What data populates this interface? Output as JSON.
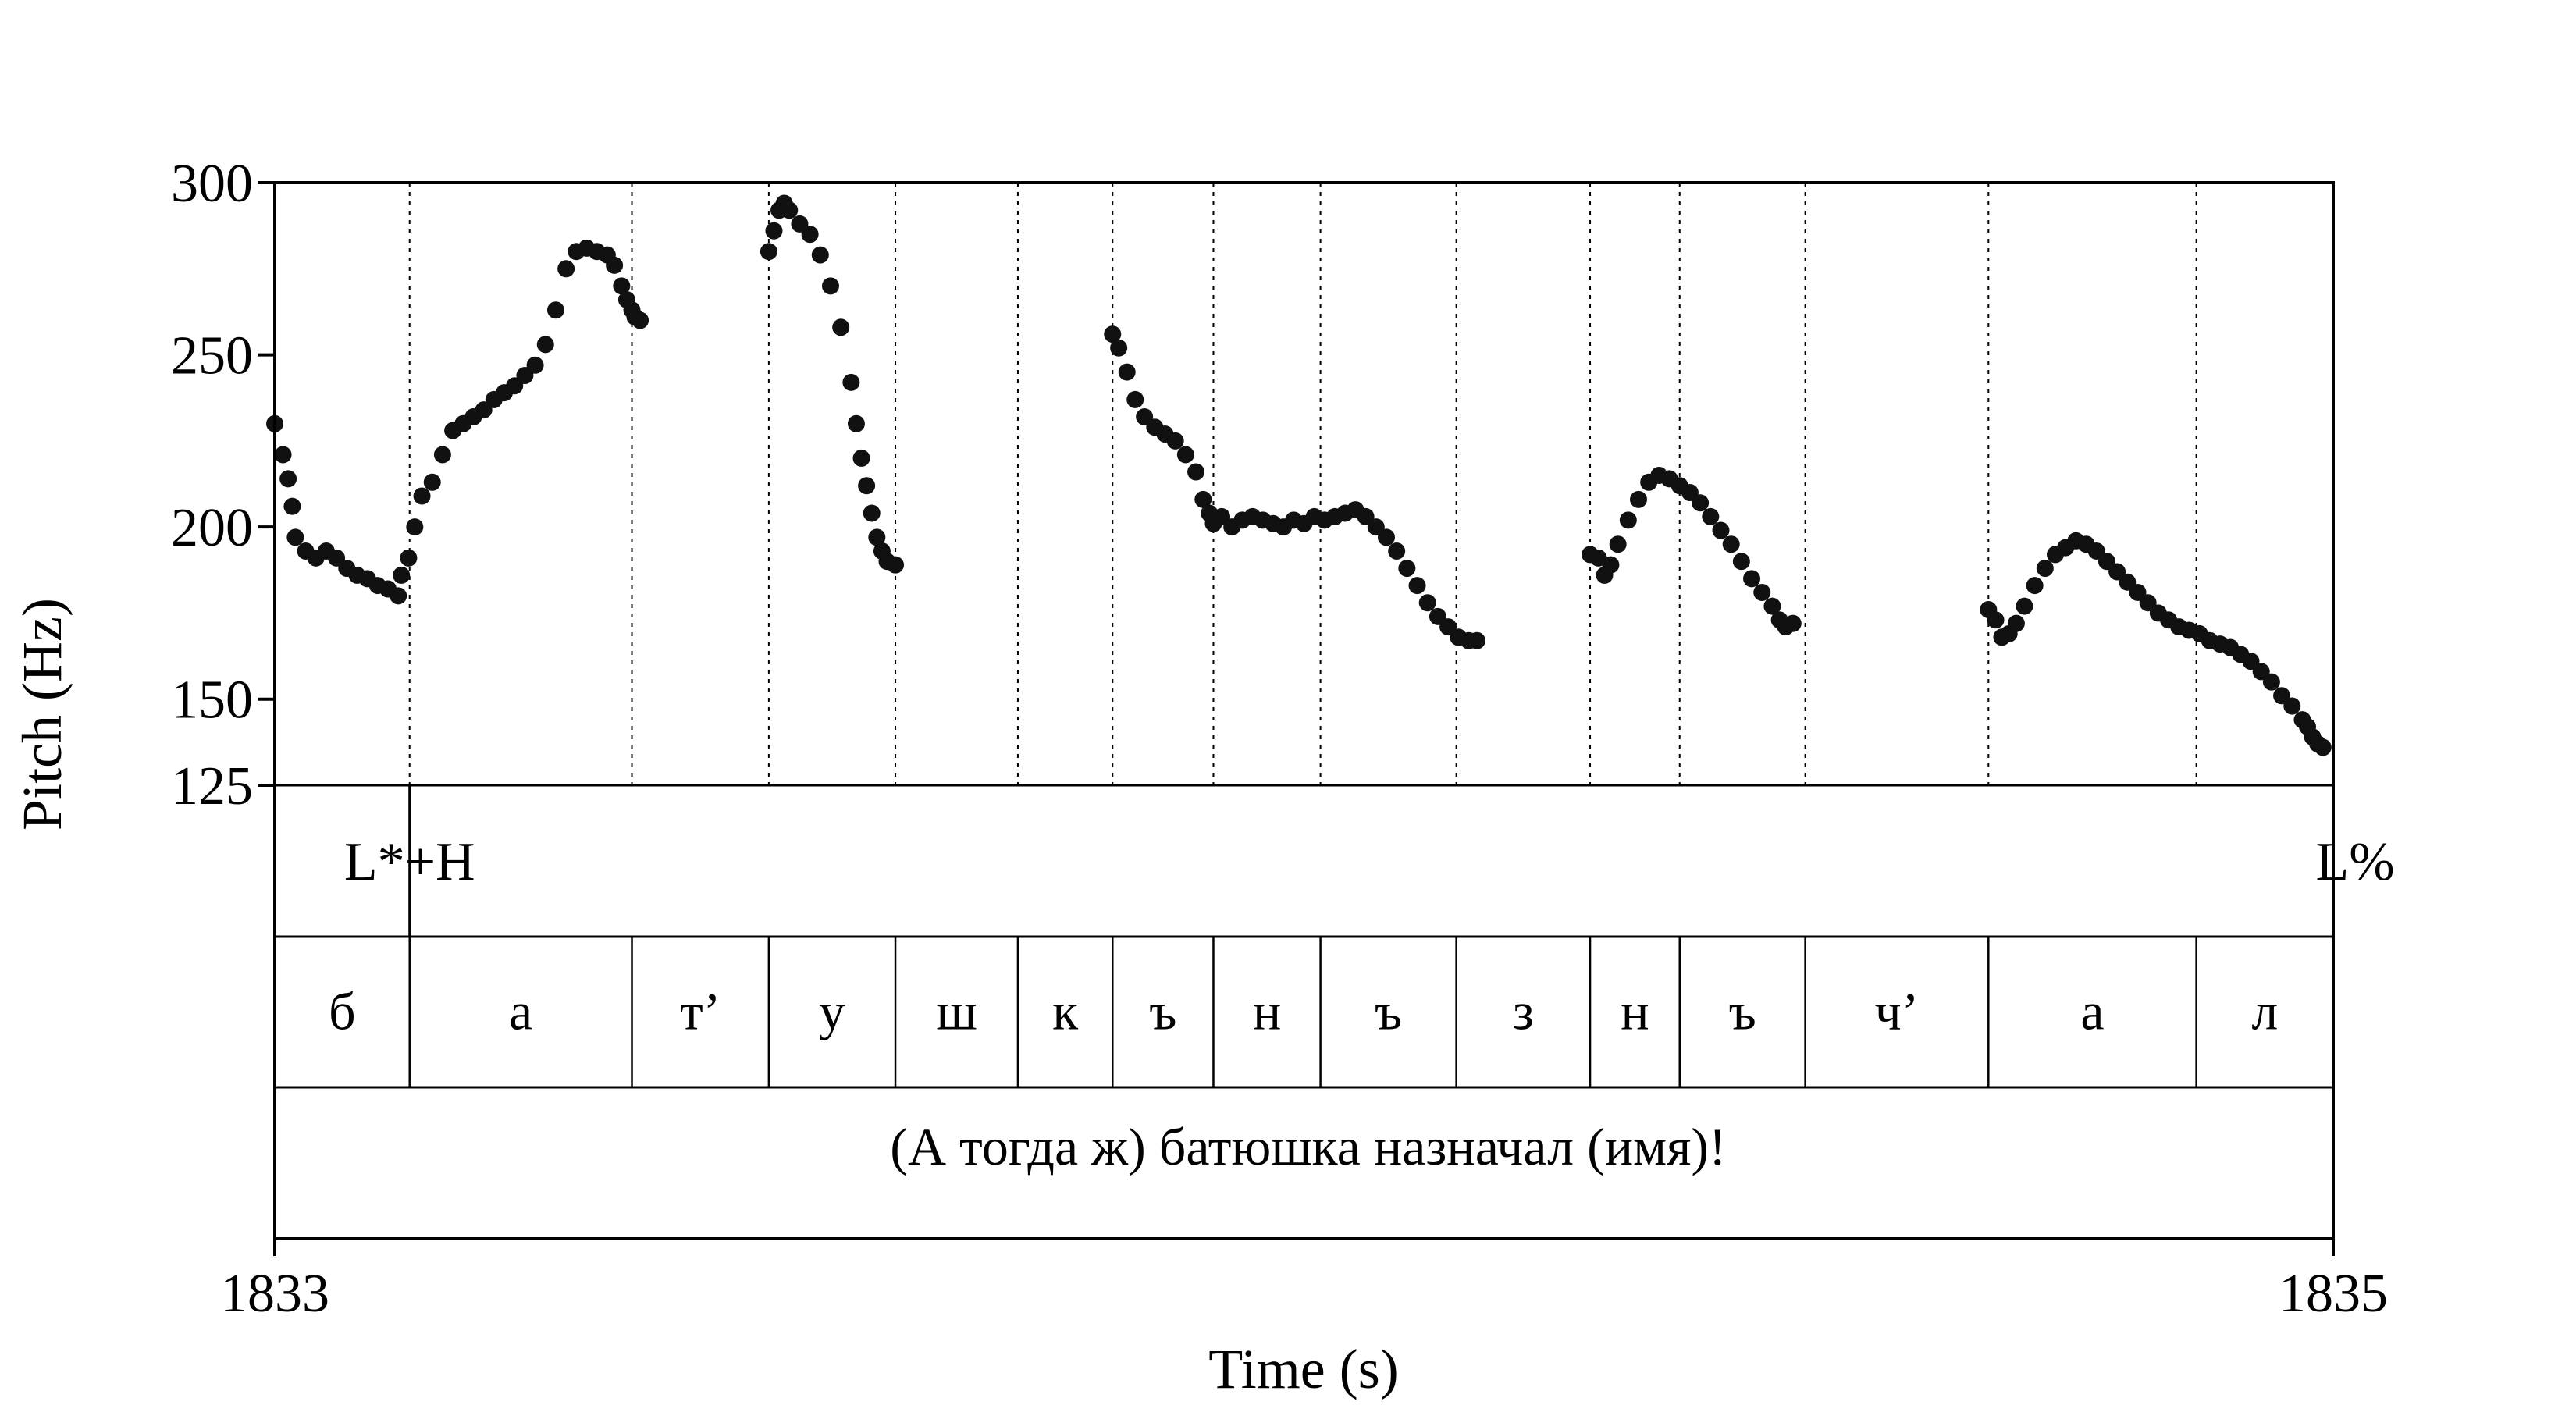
{
  "chart_data": {
    "type": "scatter",
    "xlabel": "Time (s)",
    "ylabel": "Pitch (Hz)",
    "xlim": [
      1833,
      1835
    ],
    "ylim": [
      125,
      300
    ],
    "x_tick_labels": [
      "1833",
      "1835"
    ],
    "y_ticks": [
      300,
      250,
      200,
      150,
      125
    ],
    "y_tick_labels": [
      "300",
      "250",
      "200",
      "150",
      "125"
    ],
    "grid": false,
    "colors": {
      "points": "#111111",
      "frame": "#000000"
    },
    "tone_tier": [
      {
        "label": "L*+H",
        "time": 1833.131
      },
      {
        "label": "L%",
        "time": 1835.0
      }
    ],
    "segments": [
      {
        "label": "б",
        "start": 1833.0,
        "end": 1833.131
      },
      {
        "label": "а",
        "start": 1833.131,
        "end": 1833.347
      },
      {
        "label": "т’",
        "start": 1833.347,
        "end": 1833.48
      },
      {
        "label": "у",
        "start": 1833.48,
        "end": 1833.603
      },
      {
        "label": "ш",
        "start": 1833.603,
        "end": 1833.722
      },
      {
        "label": "к",
        "start": 1833.722,
        "end": 1833.814
      },
      {
        "label": "ъ",
        "start": 1833.814,
        "end": 1833.912
      },
      {
        "label": "н",
        "start": 1833.912,
        "end": 1834.016
      },
      {
        "label": "ъ",
        "start": 1834.016,
        "end": 1834.148
      },
      {
        "label": "з",
        "start": 1834.148,
        "end": 1834.278
      },
      {
        "label": "н",
        "start": 1834.278,
        "end": 1834.365
      },
      {
        "label": "ъ",
        "start": 1834.365,
        "end": 1834.487
      },
      {
        "label": "ч’",
        "start": 1834.487,
        "end": 1834.665
      },
      {
        "label": "а",
        "start": 1834.665,
        "end": 1834.867
      },
      {
        "label": "л",
        "start": 1834.867,
        "end": 1835.0
      }
    ],
    "utterance": "(А тогда ж) батюшка назначал (имя)!",
    "series": [
      {
        "x": [
          1833.0,
          1833.008,
          1833.013,
          1833.017,
          1833.02,
          1833.03,
          1833.04,
          1833.05,
          1833.06,
          1833.07,
          1833.08,
          1833.09,
          1833.1,
          1833.11,
          1833.12,
          1833.123,
          1833.13,
          1833.136,
          1833.143,
          1833.153,
          1833.163,
          1833.173,
          1833.183,
          1833.193,
          1833.203,
          1833.213,
          1833.223,
          1833.233,
          1833.243,
          1833.253,
          1833.263,
          1833.273,
          1833.283,
          1833.293,
          1833.303,
          1833.313,
          1833.323,
          1833.33,
          1833.337,
          1833.342,
          1833.347,
          1833.35,
          1833.355
        ],
        "y": [
          230,
          221,
          214,
          206,
          197,
          193,
          191,
          193,
          191,
          188,
          186,
          185,
          183,
          182,
          180,
          186,
          191,
          200,
          209,
          213,
          221,
          228,
          230,
          232,
          234,
          237,
          239,
          241,
          244,
          247,
          253,
          263,
          275,
          280,
          281,
          280,
          279,
          276,
          270,
          266,
          263,
          261,
          260
        ]
      },
      {
        "x": [
          1833.48,
          1833.485,
          1833.49,
          1833.495,
          1833.5,
          1833.51,
          1833.52,
          1833.53,
          1833.54,
          1833.55,
          1833.56,
          1833.565,
          1833.57,
          1833.575,
          1833.58,
          1833.585,
          1833.59,
          1833.595,
          1833.603
        ],
        "y": [
          280,
          286,
          292,
          294,
          292,
          288,
          285,
          279,
          270,
          258,
          242,
          230,
          220,
          212,
          204,
          197,
          193,
          190,
          189
        ]
      },
      {
        "x": [
          1833.814,
          1833.82,
          1833.828,
          1833.836,
          1833.845,
          1833.855,
          1833.865,
          1833.875,
          1833.885,
          1833.895,
          1833.902,
          1833.908,
          1833.912,
          1833.92,
          1833.93,
          1833.94,
          1833.95,
          1833.96,
          1833.97,
          1833.98,
          1833.99,
          1834.0,
          1834.01,
          1834.02,
          1834.03,
          1834.04,
          1834.05,
          1834.06,
          1834.07,
          1834.08,
          1834.09,
          1834.1,
          1834.11,
          1834.12,
          1834.13,
          1834.14,
          1834.15,
          1834.16,
          1834.168
        ],
        "y": [
          256,
          252,
          245,
          237,
          232,
          229,
          227,
          225,
          221,
          216,
          208,
          204,
          201,
          203,
          200,
          202,
          203,
          202,
          201,
          200,
          202,
          201,
          203,
          202,
          203,
          204,
          205,
          203,
          200,
          197,
          193,
          188,
          183,
          178,
          174,
          171,
          168,
          167,
          167
        ]
      },
      {
        "x": [
          1834.278,
          1834.286,
          1834.292,
          1834.298,
          1834.305,
          1834.315,
          1834.325,
          1834.335,
          1834.345,
          1834.355,
          1834.365,
          1834.375,
          1834.385,
          1834.395,
          1834.405,
          1834.415,
          1834.425,
          1834.435,
          1834.445,
          1834.455,
          1834.462,
          1834.468,
          1834.475
        ],
        "y": [
          192,
          191,
          186,
          189,
          195,
          202,
          208,
          213,
          215,
          214,
          212,
          210,
          207,
          203,
          199,
          195,
          190,
          185,
          181,
          177,
          173,
          171,
          172
        ]
      },
      {
        "x": [
          1834.665,
          1834.672,
          1834.678,
          1834.685,
          1834.692,
          1834.7,
          1834.71,
          1834.72,
          1834.73,
          1834.74,
          1834.75,
          1834.76,
          1834.77,
          1834.78,
          1834.79,
          1834.8,
          1834.81,
          1834.82,
          1834.83,
          1834.84,
          1834.85,
          1834.86,
          1834.87,
          1834.88,
          1834.89,
          1834.9,
          1834.91,
          1834.92,
          1834.93,
          1834.94,
          1834.95,
          1834.96,
          1834.97,
          1834.975,
          1834.98,
          1834.985,
          1834.99
        ],
        "y": [
          176,
          173,
          168,
          169,
          172,
          177,
          183,
          188,
          192,
          194,
          196,
          195,
          193,
          190,
          187,
          184,
          181,
          178,
          175,
          173,
          171,
          170,
          169,
          167,
          166,
          165,
          163,
          161,
          158,
          155,
          151,
          148,
          144,
          142,
          139,
          137,
          136
        ]
      }
    ]
  }
}
